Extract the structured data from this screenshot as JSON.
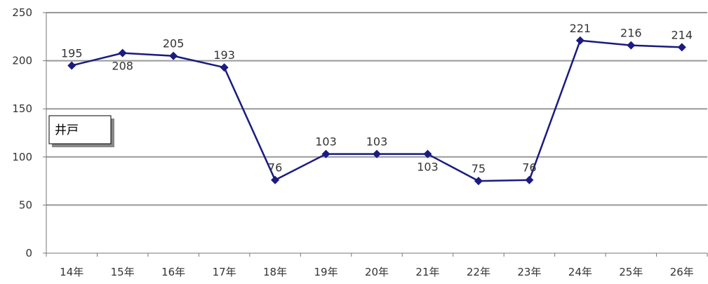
{
  "chart_data": {
    "type": "line",
    "categories": [
      "14年",
      "15年",
      "16年",
      "17年",
      "18年",
      "19年",
      "20年",
      "21年",
      "22年",
      "23年",
      "24年",
      "25年",
      "26年"
    ],
    "series": [
      {
        "name": "井戸",
        "values": [
          195,
          208,
          205,
          193,
          76,
          103,
          103,
          103,
          75,
          76,
          221,
          216,
          214
        ],
        "color": "#1b1b80"
      }
    ],
    "data_labels": [
      "195",
      "208",
      "205",
      "193",
      "76",
      "103",
      "103",
      "103",
      "75",
      "76",
      "221",
      "216",
      "214"
    ],
    "ylim": [
      0,
      250
    ],
    "yticks": [
      "0",
      "50",
      "100",
      "150",
      "200",
      "250"
    ],
    "ytick_values": [
      0,
      50,
      100,
      150,
      200,
      250
    ],
    "title": "",
    "xlabel": "",
    "ylabel": "",
    "grid": true,
    "legend_position": "left",
    "colors": {
      "line": "#1b1b80",
      "marker": "#1b1b80",
      "grid": "#999999",
      "axis": "#777777",
      "legend_shadow": "#888888"
    }
  }
}
